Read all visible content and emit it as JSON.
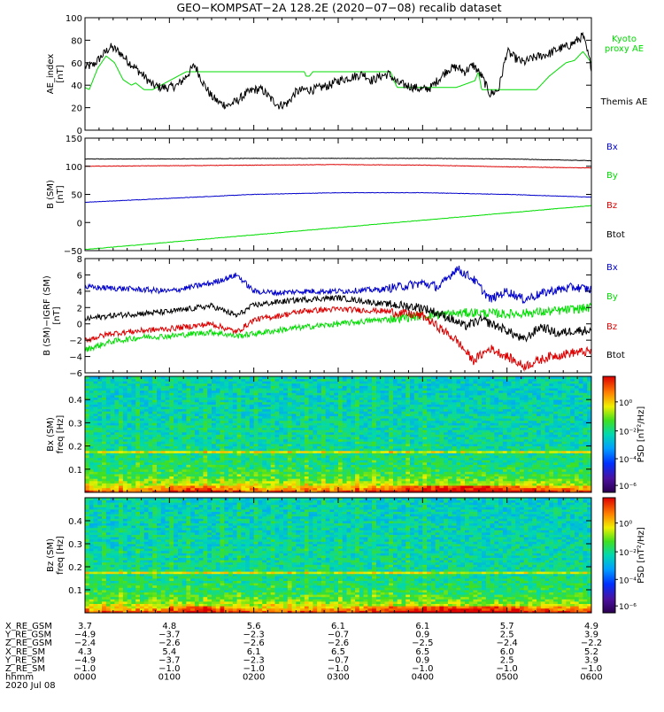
{
  "title": "GEO−KOMPSAT−2A 128.2E (2020−07−08) recalib dataset",
  "chart_data": [
    {
      "type": "line",
      "ylabel": "AE_index\n[nT]",
      "ylim": [
        0,
        100
      ],
      "yticks": [
        0,
        20,
        40,
        60,
        80,
        100
      ],
      "xlim": [
        0,
        6
      ],
      "series": [
        {
          "name": "Kyoto\nproxy AE",
          "color": "#00dd00",
          "x": [
            0,
            0.05,
            0.15,
            0.25,
            0.35,
            0.45,
            0.55,
            0.6,
            0.7,
            0.8,
            1.0,
            1.2,
            1.6,
            2.0,
            2.4,
            2.6,
            2.62,
            2.66,
            2.7,
            3.0,
            3.4,
            3.62,
            3.66,
            3.7,
            4.0,
            4.4,
            4.62,
            4.66,
            4.7,
            5.0,
            5.35,
            5.5,
            5.7,
            5.8,
            5.9,
            6.0
          ],
          "y": [
            38,
            36,
            55,
            66,
            60,
            45,
            40,
            42,
            36,
            36,
            44,
            52,
            52,
            52,
            52,
            52,
            48,
            48,
            52,
            52,
            52,
            52,
            44,
            38,
            38,
            38,
            44,
            52,
            36,
            36,
            36,
            48,
            60,
            62,
            70,
            60
          ]
        },
        {
          "name": "Themis AE",
          "color": "#000000",
          "x": [
            0,
            0.1,
            0.2,
            0.3,
            0.4,
            0.5,
            0.6,
            0.7,
            0.8,
            0.9,
            1.0,
            1.1,
            1.2,
            1.3,
            1.4,
            1.5,
            1.6,
            1.7,
            1.8,
            1.9,
            2.0,
            2.1,
            2.2,
            2.3,
            2.4,
            2.5,
            2.6,
            2.7,
            2.8,
            2.9,
            3.0,
            3.1,
            3.2,
            3.3,
            3.4,
            3.5,
            3.6,
            3.7,
            3.8,
            3.9,
            4.0,
            4.1,
            4.2,
            4.3,
            4.4,
            4.5,
            4.6,
            4.7,
            4.8,
            4.9,
            5.0,
            5.1,
            5.2,
            5.3,
            5.4,
            5.5,
            5.6,
            5.7,
            5.8,
            5.9,
            6.0
          ],
          "y": [
            56,
            58,
            66,
            74,
            70,
            62,
            55,
            48,
            40,
            38,
            38,
            40,
            48,
            58,
            42,
            30,
            24,
            22,
            26,
            32,
            36,
            36,
            28,
            22,
            24,
            34,
            36,
            36,
            38,
            40,
            44,
            46,
            48,
            50,
            44,
            48,
            50,
            42,
            40,
            38,
            36,
            38,
            46,
            54,
            56,
            52,
            58,
            48,
            32,
            36,
            70,
            64,
            60,
            64,
            66,
            68,
            72,
            74,
            78,
            84,
            56
          ]
        }
      ]
    },
    {
      "type": "line",
      "ylabel": "B (SM)\n[nT]",
      "ylim": [
        -50,
        150
      ],
      "yticks": [
        -50,
        0,
        50,
        100,
        150
      ],
      "xlim": [
        0,
        6
      ],
      "series": [
        {
          "name": "Bx",
          "color": "#0000cc",
          "x": [
            0,
            1,
            2,
            3,
            4,
            5,
            6
          ],
          "y": [
            36,
            43,
            50,
            53,
            53,
            50,
            45
          ]
        },
        {
          "name": "By",
          "color": "#00dd00",
          "x": [
            0,
            6
          ],
          "y": [
            -48,
            30
          ]
        },
        {
          "name": "Bz",
          "color": "#dd0000",
          "x": [
            0,
            1,
            2,
            3,
            4,
            5,
            6
          ],
          "y": [
            100,
            101,
            102,
            103,
            102,
            99,
            97
          ]
        },
        {
          "name": "Btot",
          "color": "#000000",
          "x": [
            0,
            1,
            2,
            3,
            4,
            5,
            6
          ],
          "y": [
            113,
            113,
            114,
            114,
            114,
            113,
            110
          ]
        }
      ]
    },
    {
      "type": "line",
      "ylabel": "B (SM)−IGRF (SM)\n[nT]",
      "ylim": [
        -6,
        8
      ],
      "yticks": [
        -6,
        -4,
        -2,
        0,
        2,
        4,
        6,
        8
      ],
      "xlim": [
        0,
        6
      ],
      "series": [
        {
          "name": "Bx",
          "color": "#0000cc",
          "x": [
            0,
            0.5,
            1,
            1.5,
            1.8,
            2.0,
            2.3,
            2.6,
            3.0,
            3.5,
            4.0,
            4.2,
            4.4,
            4.6,
            4.8,
            5.0,
            5.2,
            5.5,
            5.8,
            6.0
          ],
          "y": [
            4.5,
            4.3,
            4.0,
            5.0,
            6.0,
            4.0,
            3.8,
            4.0,
            4.0,
            4.2,
            5.0,
            4.5,
            6.8,
            5.5,
            3.0,
            4.0,
            3.0,
            4.0,
            4.5,
            4.2
          ]
        },
        {
          "name": "By",
          "color": "#00dd00",
          "x": [
            0,
            0.3,
            0.7,
            1.0,
            1.5,
            1.8,
            2.0,
            2.5,
            3.0,
            3.5,
            4.0,
            4.3,
            4.6,
            5.0,
            5.5,
            6.0
          ],
          "y": [
            -3.2,
            -2.2,
            -1.6,
            -1.5,
            -1.0,
            -1.5,
            -1.2,
            -0.5,
            0.0,
            0.5,
            1.0,
            1.2,
            1.4,
            1.2,
            1.5,
            2.0
          ]
        },
        {
          "name": "Bz",
          "color": "#dd0000",
          "x": [
            0,
            0.3,
            0.7,
            1.0,
            1.5,
            1.8,
            2.0,
            2.3,
            2.6,
            3.0,
            3.5,
            4.0,
            4.2,
            4.4,
            4.6,
            4.8,
            5.0,
            5.2,
            5.5,
            5.8,
            6.0
          ],
          "y": [
            -2.0,
            -1.2,
            -0.8,
            -0.6,
            0.0,
            -1.0,
            0.5,
            1.0,
            1.6,
            1.8,
            1.6,
            1.0,
            -0.5,
            -2.0,
            -4.5,
            -3.0,
            -4.0,
            -5.2,
            -4.0,
            -3.5,
            -3.4
          ]
        },
        {
          "name": "Btot",
          "color": "#000000",
          "x": [
            0,
            0.3,
            0.7,
            1.0,
            1.5,
            1.8,
            2.0,
            2.3,
            2.6,
            3.0,
            3.5,
            4.0,
            4.3,
            4.5,
            4.7,
            5.0,
            5.2,
            5.4,
            5.6,
            5.8,
            6.0
          ],
          "y": [
            0.6,
            1.0,
            1.3,
            1.5,
            2.2,
            1.0,
            2.3,
            2.7,
            3.0,
            3.2,
            2.5,
            2.0,
            0.8,
            -0.3,
            0.5,
            -0.8,
            -2.0,
            -0.3,
            -1.2,
            -0.8,
            -0.8
          ]
        }
      ]
    },
    {
      "type": "heatmap",
      "ylabel": "Bx (SM)\nfreq [Hz]",
      "ylim": [
        0,
        0.5
      ],
      "yticks": [
        0.1,
        0.2,
        0.3,
        0.4
      ],
      "xlim": [
        0,
        6
      ],
      "colorbar_label": "PSD [nT²/Hz]",
      "colorbar_ticks": [
        "10⁰",
        "10⁻²",
        "10⁻⁴",
        "10⁻⁶"
      ]
    },
    {
      "type": "heatmap",
      "ylabel": "Bz (SM)\nfreq [Hz]",
      "ylim": [
        0,
        0.5
      ],
      "yticks": [
        0.1,
        0.2,
        0.3,
        0.4
      ],
      "xlim": [
        0,
        6
      ],
      "colorbar_label": "PSD [nT²/Hz]",
      "colorbar_ticks": [
        "10⁰",
        "10⁻²",
        "10⁻⁴",
        "10⁻⁶"
      ]
    }
  ],
  "ephemeris": {
    "rows": [
      {
        "label": "X_RE_GSM",
        "values": [
          "3.7",
          "4.8",
          "5.6",
          "6.1",
          "6.1",
          "5.7",
          "4.9"
        ]
      },
      {
        "label": "Y_RE_GSM",
        "values": [
          "−4.9",
          "−3.7",
          "−2.3",
          "−0.7",
          "0.9",
          "2.5",
          "3.9"
        ]
      },
      {
        "label": "Z_RE_GSM",
        "values": [
          "−2.4",
          "−2.6",
          "−2.6",
          "−2.6",
          "−2.5",
          "−2.4",
          "−2.2"
        ]
      },
      {
        "label": "X_RE_SM",
        "values": [
          "4.3",
          "5.4",
          "6.1",
          "6.5",
          "6.5",
          "6.0",
          "5.2"
        ]
      },
      {
        "label": "Y_RE_SM",
        "values": [
          "−4.9",
          "−3.7",
          "−2.3",
          "−0.7",
          "0.9",
          "2.5",
          "3.9"
        ]
      },
      {
        "label": "Z_RE_SM",
        "values": [
          "−1.0",
          "−1.0",
          "−1.0",
          "−1.0",
          "−1.0",
          "−1.0",
          "−1.0"
        ]
      },
      {
        "label": "hhmm",
        "values": [
          "0000",
          "0100",
          "0200",
          "0300",
          "0400",
          "0500",
          "0600"
        ]
      }
    ],
    "date": "2020 Jul 08"
  }
}
